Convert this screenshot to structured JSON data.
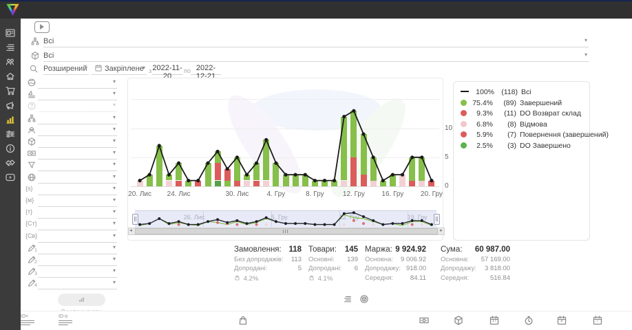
{
  "app": {
    "topbar_color": "#303030",
    "sidebar_color": "#3b3b3b",
    "accent_yellow": "#e6c735"
  },
  "sidebar": {
    "items": [
      {
        "name": "panel",
        "icon": "card"
      },
      {
        "name": "orders-list",
        "icon": "list"
      },
      {
        "name": "users",
        "icon": "users"
      },
      {
        "name": "company",
        "icon": "home"
      },
      {
        "name": "purchases",
        "icon": "cart"
      },
      {
        "name": "marketing",
        "icon": "mega"
      },
      {
        "name": "analytics",
        "icon": "chart",
        "active": true
      },
      {
        "name": "settings",
        "icon": "sliders"
      },
      {
        "name": "info",
        "icon": "info"
      },
      {
        "name": "partners",
        "icon": "hands"
      },
      {
        "name": "video",
        "icon": "video"
      }
    ]
  },
  "filters": {
    "source_select": {
      "value": "Всі",
      "icon": "tree"
    },
    "product_select": {
      "value": "Всі",
      "icon": "package"
    },
    "search_mode": {
      "value": "Розширений"
    },
    "period_mode": {
      "value": "Закріплене"
    },
    "date_from_label": "з",
    "date_from": "2022-11-20",
    "date_to_label": "по",
    "date_to": "2022-12-21",
    "left_rows": [
      {
        "name": "geo-filter",
        "icon": "globe",
        "value": ""
      },
      {
        "name": "brand-filter",
        "icon": "brand",
        "value": ""
      },
      {
        "name": "help-filter",
        "icon": "question",
        "value": "",
        "disabled": true
      },
      {
        "name": "structure-filter",
        "icon": "tree",
        "value": ""
      },
      {
        "name": "manager-filter",
        "icon": "spy",
        "value": ""
      },
      {
        "name": "product-filter",
        "icon": "package",
        "value": ""
      },
      {
        "name": "payment-filter",
        "icon": "money",
        "value": ""
      },
      {
        "name": "funnel-filter",
        "icon": "funnel",
        "value": ""
      },
      {
        "name": "region-filter",
        "icon": "globe2",
        "value": ""
      },
      {
        "name": "var-s-filter",
        "icon": "text",
        "text": "{s}",
        "value": ""
      },
      {
        "name": "var-m-filter",
        "icon": "text",
        "text": "{м}",
        "value": ""
      },
      {
        "name": "var-t-filter",
        "icon": "text",
        "text": "{т}",
        "value": ""
      },
      {
        "name": "var-st-filter",
        "icon": "text",
        "text": "{Ст}",
        "value": ""
      },
      {
        "name": "var-sv-filter",
        "icon": "text",
        "text": "{Св}",
        "value": ""
      },
      {
        "name": "note-1-filter",
        "icon": "pencil",
        "sub": "1",
        "value": ""
      },
      {
        "name": "note-2-filter",
        "icon": "pencil",
        "sub": "2",
        "value": ""
      },
      {
        "name": "note-3-filter",
        "icon": "pencil",
        "sub": "3",
        "value": ""
      },
      {
        "name": "note-4-filter",
        "icon": "pencil",
        "sub": "4",
        "value": ""
      }
    ],
    "apply_label": "Застосувати"
  },
  "chart_data": {
    "type": "bar",
    "title": "",
    "xlabel": "",
    "ylabel": "",
    "ylim": [
      0,
      15
    ],
    "yticks": [
      0,
      5,
      10
    ],
    "grid": true,
    "legend_position": "right",
    "colors": {
      "green": "#86bf4a",
      "darkgreen": "#55a146",
      "red": "#dc5c5c",
      "pink": "#f3d0d4",
      "line": "#1a1a1a"
    },
    "x_tick_labels": [
      {
        "index": 0,
        "label": "20. Лис"
      },
      {
        "index": 4,
        "label": "24. Лис"
      },
      {
        "index": 10,
        "label": "30. Лис"
      },
      {
        "index": 14,
        "label": "4. Гру"
      },
      {
        "index": 18,
        "label": "8. Гру"
      },
      {
        "index": 22,
        "label": "12. Гру"
      },
      {
        "index": 26,
        "label": "16. Гру"
      },
      {
        "index": 30,
        "label": "20. Гру"
      }
    ],
    "navigator_labels": [
      {
        "index": 6,
        "label": "26. Лис"
      },
      {
        "index": 15,
        "label": "5. Гру"
      },
      {
        "index": 22,
        "label": "12. Гру"
      },
      {
        "index": 29,
        "label": "19. Гру"
      }
    ],
    "days": [
      {
        "date": "20.11",
        "total": 1,
        "segments": [
          [
            "pink",
            1
          ]
        ]
      },
      {
        "date": "21.11",
        "total": 2,
        "segments": [
          [
            "green",
            2
          ]
        ]
      },
      {
        "date": "22.11",
        "total": 7,
        "segments": [
          [
            "green",
            7
          ]
        ]
      },
      {
        "date": "23.11",
        "total": 2,
        "segments": [
          [
            "pink",
            1
          ],
          [
            "green",
            1
          ]
        ]
      },
      {
        "date": "24.11",
        "total": 4,
        "segments": [
          [
            "red",
            1
          ],
          [
            "green",
            3
          ]
        ]
      },
      {
        "date": "25.11",
        "total": 1,
        "segments": [
          [
            "green",
            1
          ]
        ]
      },
      {
        "date": "26.11",
        "total": 1,
        "segments": [
          [
            "red",
            1
          ]
        ]
      },
      {
        "date": "27.11",
        "total": 4,
        "segments": [
          [
            "green",
            4
          ]
        ]
      },
      {
        "date": "28.11",
        "total": 6,
        "segments": [
          [
            "darkgreen",
            1
          ],
          [
            "red",
            3
          ],
          [
            "green",
            2
          ]
        ]
      },
      {
        "date": "29.11",
        "total": 3,
        "segments": [
          [
            "green",
            1
          ],
          [
            "red",
            2
          ]
        ]
      },
      {
        "date": "30.11",
        "total": 5,
        "segments": [
          [
            "red",
            1
          ],
          [
            "green",
            4
          ]
        ]
      },
      {
        "date": "01.12",
        "total": 2,
        "segments": [
          [
            "pink",
            1
          ],
          [
            "green",
            1
          ]
        ]
      },
      {
        "date": "02.12",
        "total": 4,
        "segments": [
          [
            "red",
            1
          ],
          [
            "green",
            3
          ]
        ]
      },
      {
        "date": "03.12",
        "total": 8,
        "segments": [
          [
            "pink",
            1
          ],
          [
            "green",
            7
          ]
        ]
      },
      {
        "date": "04.12",
        "total": 4,
        "segments": [
          [
            "green",
            4
          ]
        ]
      },
      {
        "date": "05.12",
        "total": 2,
        "segments": [
          [
            "green",
            2
          ]
        ]
      },
      {
        "date": "06.12",
        "total": 2,
        "segments": [
          [
            "green",
            2
          ]
        ]
      },
      {
        "date": "07.12",
        "total": 2,
        "segments": [
          [
            "green",
            2
          ]
        ]
      },
      {
        "date": "08.12",
        "total": 1,
        "segments": [
          [
            "green",
            1
          ]
        ]
      },
      {
        "date": "09.12",
        "total": 1,
        "segments": [
          [
            "green",
            1
          ]
        ]
      },
      {
        "date": "10.12",
        "total": 1,
        "segments": [
          [
            "green",
            1
          ]
        ]
      },
      {
        "date": "11.12",
        "total": 12,
        "segments": [
          [
            "pink",
            1
          ],
          [
            "green",
            11
          ]
        ]
      },
      {
        "date": "12.12",
        "total": 13,
        "segments": [
          [
            "red",
            5
          ],
          [
            "green",
            8
          ]
        ]
      },
      {
        "date": "13.12",
        "total": 9,
        "segments": [
          [
            "red",
            2
          ],
          [
            "green",
            7
          ]
        ]
      },
      {
        "date": "14.12",
        "total": 5,
        "segments": [
          [
            "pink",
            1
          ],
          [
            "green",
            4
          ]
        ]
      },
      {
        "date": "15.12",
        "total": 1,
        "segments": [
          [
            "green",
            1
          ]
        ]
      },
      {
        "date": "16.12",
        "total": 2,
        "segments": [
          [
            "green",
            2
          ]
        ]
      },
      {
        "date": "17.12",
        "total": 2,
        "segments": [
          [
            "pink",
            2
          ]
        ]
      },
      {
        "date": "18.12",
        "total": 5,
        "segments": [
          [
            "red",
            1
          ],
          [
            "green",
            4
          ]
        ]
      },
      {
        "date": "19.12",
        "total": 5,
        "segments": [
          [
            "pink",
            1
          ],
          [
            "green",
            4
          ]
        ]
      },
      {
        "date": "20.12",
        "total": 1,
        "segments": [
          [
            "red",
            1
          ]
        ]
      }
    ]
  },
  "legend": {
    "items": [
      {
        "swatch": "line",
        "color": "#1a1a1a",
        "pct": "100%",
        "count": "(118)",
        "label": "Всі"
      },
      {
        "swatch": "dot",
        "color": "#86bf4a",
        "pct": "75.4%",
        "count": "(89)",
        "label": "Завершений"
      },
      {
        "swatch": "dot",
        "color": "#dc5c5c",
        "pct": "9.3%",
        "count": "(11)",
        "label": "DO Возврат склад"
      },
      {
        "swatch": "dot",
        "color": "#f0c8cc",
        "pct": "6.8%",
        "count": "(8)",
        "label": "Відмова"
      },
      {
        "swatch": "dot",
        "color": "#dc5c5c",
        "pct": "5.9%",
        "count": "(7)",
        "label": "Повернення (завершений)"
      },
      {
        "swatch": "dot",
        "color": "#5cb34e",
        "pct": "2.5%",
        "count": "(3)",
        "label": "DO Завершено"
      }
    ]
  },
  "stats": {
    "columns": [
      {
        "title": "Замовлення:",
        "value": "118",
        "rows": [
          {
            "label": "Без допродажів:",
            "value": "113"
          },
          {
            "label": "Допродані:",
            "value": "5"
          },
          {
            "icon": "bag",
            "label": "",
            "value": "4.2%"
          }
        ]
      },
      {
        "title": "Товари:",
        "value": "145",
        "rows": [
          {
            "label": "Основні:",
            "value": "139"
          },
          {
            "label": "Допродані:",
            "value": "6"
          },
          {
            "icon": "bag",
            "label": "",
            "value": "4.1%"
          }
        ]
      },
      {
        "title": "Маржа:",
        "value": "9 924.92",
        "rows": [
          {
            "label": "Основна:",
            "value": "9 006.92"
          },
          {
            "label": "Допродажу:",
            "value": "918.00"
          },
          {
            "label": "Середня:",
            "value": "84.11"
          }
        ]
      },
      {
        "title": "Сума:",
        "value": "60 987.00",
        "rows": [
          {
            "label": "Основна:",
            "value": "57 169.00"
          },
          {
            "label": "Допродажу:",
            "value": "3 818.00"
          },
          {
            "label": "Середня:",
            "value": "516.84"
          }
        ]
      }
    ]
  },
  "toggles": [
    {
      "name": "table-view-toggle",
      "icon": "list"
    },
    {
      "name": "product-view-toggle",
      "icon": "pkgcircle"
    }
  ],
  "table_header": {
    "icons": [
      "id",
      "ido",
      "bag",
      "money",
      "package",
      "cal17",
      "stopwatch",
      "calb",
      "caledit"
    ]
  }
}
